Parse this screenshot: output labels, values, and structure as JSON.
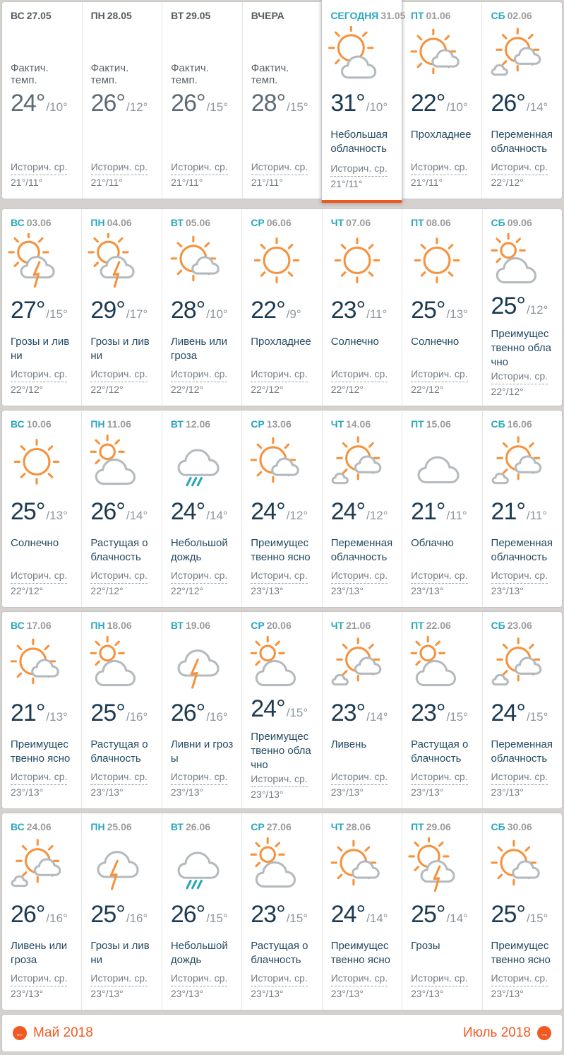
{
  "labels": {
    "actual_temp": "Фактич. темп.",
    "historical_avg": "Историч. ср."
  },
  "pager": {
    "prev": "Май 2018",
    "next": "Июль 2018"
  },
  "colors": {
    "accent_orange": "#f05a22",
    "today_underline": "#ee571e",
    "teal_day": "#29a7bb",
    "sun_orange": "#f6923d",
    "cloud_gray": "#b4babe",
    "rain_teal": "#27a9b8",
    "temp_navy": "#1c3b52",
    "temp_gray_past": "#5d6b77"
  },
  "weeks": [
    [
      {
        "day": "ВС",
        "date": "27.05",
        "type": "past",
        "icon": null,
        "high": "24°",
        "low": "/10°",
        "desc": "",
        "hist": "21°/11°"
      },
      {
        "day": "ПН",
        "date": "28.05",
        "type": "past",
        "icon": null,
        "high": "26°",
        "low": "/12°",
        "desc": "",
        "hist": "21°/11°"
      },
      {
        "day": "ВТ",
        "date": "29.05",
        "type": "past",
        "icon": null,
        "high": "26°",
        "low": "/15°",
        "desc": "",
        "hist": "21°/11°"
      },
      {
        "day": "ВЧЕРА",
        "date": "",
        "type": "past",
        "icon": null,
        "high": "28°",
        "low": "/15°",
        "desc": "",
        "hist": "21°/11°"
      },
      {
        "day": "СЕГОДНЯ",
        "date": "31.05",
        "type": "today",
        "icon": "sun-cloud",
        "high": "31°",
        "low": "/10°",
        "desc": "Небольшая облачность",
        "hist": "21°/11°"
      },
      {
        "day": "ПТ",
        "date": "01.06",
        "type": "future",
        "icon": "sun-small-cloud",
        "high": "22°",
        "low": "/10°",
        "desc": "Прохладнее",
        "hist": "21°/11°"
      },
      {
        "day": "СБ",
        "date": "02.06",
        "type": "future",
        "icon": "sun-two-clouds",
        "high": "26°",
        "low": "/14°",
        "desc": "Переменная облачность",
        "hist": "22°/12°"
      }
    ],
    [
      {
        "day": "ВС",
        "date": "03.06",
        "type": "future",
        "icon": "storm-sun",
        "high": "27°",
        "low": "/15°",
        "desc": "Грозы и ливни",
        "hist": "22°/12°"
      },
      {
        "day": "ПН",
        "date": "04.06",
        "type": "future",
        "icon": "storm-sun",
        "high": "29°",
        "low": "/17°",
        "desc": "Грозы и ливни",
        "hist": "22°/12°"
      },
      {
        "day": "ВТ",
        "date": "05.06",
        "type": "future",
        "icon": "sun-small-cloud",
        "high": "28°",
        "low": "/10°",
        "desc": "Ливень или гроза",
        "hist": "22°/12°"
      },
      {
        "day": "СР",
        "date": "06.06",
        "type": "future",
        "icon": "sun",
        "high": "22°",
        "low": "/9°",
        "desc": "Прохладнее",
        "hist": "22°/12°"
      },
      {
        "day": "ЧТ",
        "date": "07.06",
        "type": "future",
        "icon": "sun",
        "high": "23°",
        "low": "/11°",
        "desc": "Солнечно",
        "hist": "22°/12°"
      },
      {
        "day": "ПТ",
        "date": "08.06",
        "type": "future",
        "icon": "sun",
        "high": "25°",
        "low": "/13°",
        "desc": "Солнечно",
        "hist": "22°/12°"
      },
      {
        "day": "СБ",
        "date": "09.06",
        "type": "future",
        "icon": "cloud-sun",
        "high": "25°",
        "low": "/12°",
        "desc": "Преимущественно облачно",
        "hist": "22°/12°"
      }
    ],
    [
      {
        "day": "ВС",
        "date": "10.06",
        "type": "future",
        "icon": "sun",
        "high": "25°",
        "low": "/13°",
        "desc": "Солнечно",
        "hist": "22°/12°"
      },
      {
        "day": "ПН",
        "date": "11.06",
        "type": "future",
        "icon": "cloud-sun",
        "high": "26°",
        "low": "/14°",
        "desc": "Растущая облачность",
        "hist": "22°/12°"
      },
      {
        "day": "ВТ",
        "date": "12.06",
        "type": "future",
        "icon": "rain",
        "high": "24°",
        "low": "/14°",
        "desc": "Небольшой дождь",
        "hist": "22°/12°"
      },
      {
        "day": "СР",
        "date": "13.06",
        "type": "future",
        "icon": "sun-small-cloud",
        "high": "24°",
        "low": "/12°",
        "desc": "Преимущественно ясно",
        "hist": "23°/13°"
      },
      {
        "day": "ЧТ",
        "date": "14.06",
        "type": "future",
        "icon": "sun-two-clouds",
        "high": "24°",
        "low": "/12°",
        "desc": "Переменная облачность",
        "hist": "23°/13°"
      },
      {
        "day": "ПТ",
        "date": "15.06",
        "type": "future",
        "icon": "cloud",
        "high": "21°",
        "low": "/11°",
        "desc": "Облачно",
        "hist": "23°/13°"
      },
      {
        "day": "СБ",
        "date": "16.06",
        "type": "future",
        "icon": "sun-two-clouds",
        "high": "21°",
        "low": "/11°",
        "desc": "Переменная облачность",
        "hist": "23°/13°"
      }
    ],
    [
      {
        "day": "ВС",
        "date": "17.06",
        "type": "future",
        "icon": "sun-small-cloud",
        "high": "21°",
        "low": "/13°",
        "desc": "Преимущественно ясно",
        "hist": "23°/13°"
      },
      {
        "day": "ПН",
        "date": "18.06",
        "type": "future",
        "icon": "cloud-sun",
        "high": "25°",
        "low": "/16°",
        "desc": "Растущая облачность",
        "hist": "23°/13°"
      },
      {
        "day": "ВТ",
        "date": "19.06",
        "type": "future",
        "icon": "storm",
        "high": "26°",
        "low": "/16°",
        "desc": "Ливни и грозы",
        "hist": "23°/13°"
      },
      {
        "day": "СР",
        "date": "20.06",
        "type": "future",
        "icon": "cloud-sun",
        "high": "24°",
        "low": "/15°",
        "desc": "Преимущественно облачно",
        "hist": "23°/13°"
      },
      {
        "day": "ЧТ",
        "date": "21.06",
        "type": "future",
        "icon": "sun-two-clouds",
        "high": "23°",
        "low": "/14°",
        "desc": "Ливень",
        "hist": "23°/13°"
      },
      {
        "day": "ПТ",
        "date": "22.06",
        "type": "future",
        "icon": "cloud-sun",
        "high": "23°",
        "low": "/15°",
        "desc": "Растущая облачность",
        "hist": "23°/13°"
      },
      {
        "day": "СБ",
        "date": "23.06",
        "type": "future",
        "icon": "sun-two-clouds",
        "high": "24°",
        "low": "/15°",
        "desc": "Переменная облачность",
        "hist": "23°/13°"
      }
    ],
    [
      {
        "day": "ВС",
        "date": "24.06",
        "type": "future",
        "icon": "sun-two-clouds",
        "high": "26°",
        "low": "/16°",
        "desc": "Ливень или гроза",
        "hist": "23°/13°"
      },
      {
        "day": "ПН",
        "date": "25.06",
        "type": "future",
        "icon": "storm",
        "high": "25°",
        "low": "/16°",
        "desc": "Грозы и ливни",
        "hist": "23°/13°"
      },
      {
        "day": "ВТ",
        "date": "26.06",
        "type": "future",
        "icon": "rain",
        "high": "26°",
        "low": "/15°",
        "desc": "Небольшой дождь",
        "hist": "23°/13°"
      },
      {
        "day": "СР",
        "date": "27.06",
        "type": "future",
        "icon": "cloud-sun",
        "high": "23°",
        "low": "/15°",
        "desc": "Растущая облачность",
        "hist": "23°/13°"
      },
      {
        "day": "ЧТ",
        "date": "28.06",
        "type": "future",
        "icon": "sun-small-cloud",
        "high": "24°",
        "low": "/14°",
        "desc": "Преимущественно ясно",
        "hist": "23°/13°"
      },
      {
        "day": "ПТ",
        "date": "29.06",
        "type": "future",
        "icon": "storm-sun",
        "high": "25°",
        "low": "/14°",
        "desc": "Грозы",
        "hist": "23°/13°"
      },
      {
        "day": "СБ",
        "date": "30.06",
        "type": "future",
        "icon": "sun-small-cloud",
        "high": "25°",
        "low": "/15°",
        "desc": "Преимущественно ясно",
        "hist": "23°/13°"
      }
    ]
  ]
}
